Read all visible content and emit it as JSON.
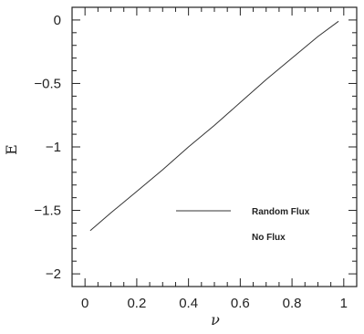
{
  "chart_data": {
    "type": "line",
    "title": "",
    "xlabel": "ν",
    "ylabel": "E",
    "xlim": [
      -0.05,
      1.05
    ],
    "ylim": [
      -2.1,
      0.1
    ],
    "x_ticks": [
      0,
      0.2,
      0.4,
      0.6,
      0.8,
      1
    ],
    "x_tick_labels": [
      "0",
      "0.2",
      "0.4",
      "0.6",
      "0.8",
      "1"
    ],
    "y_ticks": [
      0,
      -0.5,
      -1,
      -1.5,
      -2
    ],
    "y_tick_labels": [
      "0",
      "−0.5",
      "−1",
      "−1.5",
      "−2"
    ],
    "grid": false,
    "legend_position": "center-right",
    "series": [
      {
        "name": "Random Flux",
        "color": "#333333",
        "x": [
          0.02,
          0.1,
          0.2,
          0.3,
          0.4,
          0.5,
          0.6,
          0.7,
          0.8,
          0.9,
          0.98
        ],
        "y": [
          -1.66,
          -1.52,
          -1.35,
          -1.18,
          -1.0,
          -0.83,
          -0.65,
          -0.47,
          -0.3,
          -0.13,
          -0.01
        ]
      },
      {
        "name": "No Flux",
        "color": "#333333",
        "x": [],
        "y": []
      }
    ]
  }
}
